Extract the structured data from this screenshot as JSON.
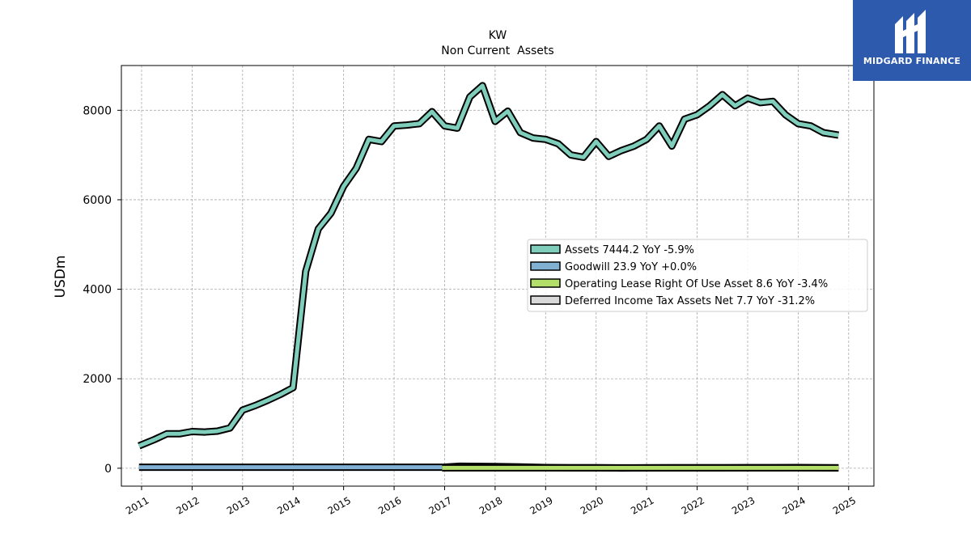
{
  "brand": {
    "name": "MIDGARD FINANCE",
    "color": "#2d5aad"
  },
  "chart_data": {
    "type": "area",
    "title": "KW",
    "subtitle": "Non Current  Assets",
    "ylabel": "USDm",
    "xlabel": "",
    "xlim": [
      2010.6,
      2025.5
    ],
    "ylim": [
      -400,
      9000
    ],
    "yticks": [
      0,
      2000,
      4000,
      6000,
      8000
    ],
    "xticks": [
      "2011",
      "2012",
      "2013",
      "2014",
      "2015",
      "2016",
      "2017",
      "2018",
      "2019",
      "2020",
      "2021",
      "2022",
      "2023",
      "2024",
      "2025"
    ],
    "grid": true,
    "legend_position": "center-right",
    "series": [
      {
        "name": "Assets  7444.2 YoY -5.9%",
        "color": "#7fcdbb",
        "x": [
          2010.95,
          2011.25,
          2011.5,
          2011.75,
          2012.0,
          2012.25,
          2012.5,
          2012.75,
          2013.0,
          2013.25,
          2013.5,
          2013.75,
          2014.0,
          2014.25,
          2014.5,
          2014.75,
          2015.0,
          2015.25,
          2015.5,
          2015.75,
          2016.0,
          2016.25,
          2016.5,
          2016.75,
          2017.0,
          2017.25,
          2017.5,
          2017.75,
          2018.0,
          2018.25,
          2018.5,
          2018.75,
          2019.0,
          2019.25,
          2019.5,
          2019.75,
          2020.0,
          2020.25,
          2020.5,
          2020.75,
          2021.0,
          2021.25,
          2021.5,
          2021.75,
          2022.0,
          2022.25,
          2022.5,
          2022.75,
          2023.0,
          2023.25,
          2023.5,
          2023.75,
          2024.0,
          2024.25,
          2024.5,
          2024.8
        ],
        "values": [
          500,
          640,
          770,
          770,
          820,
          810,
          830,
          900,
          1300,
          1400,
          1520,
          1650,
          1800,
          4400,
          5350,
          5700,
          6300,
          6700,
          7350,
          7300,
          7650,
          7670,
          7700,
          7970,
          7650,
          7600,
          8300,
          8550,
          7750,
          7980,
          7500,
          7380,
          7350,
          7250,
          7000,
          6950,
          7300,
          6970,
          7100,
          7200,
          7350,
          7650,
          7200,
          7800,
          7900,
          8100,
          8350,
          8100,
          8270,
          8170,
          8200,
          7900,
          7700,
          7650,
          7500,
          7444.2
        ]
      },
      {
        "name": "Goodwill  23.9 YoY +0.0%",
        "color": "#80b1d3",
        "x": [
          2010.95,
          2016.95
        ],
        "values": [
          23.9,
          23.9
        ]
      },
      {
        "name": "Operating Lease Right Of Use Asset  8.6 YoY -3.4%",
        "color": "#b3de69",
        "x": [
          2016.95,
          2024.8
        ],
        "values": [
          8.6,
          8.6
        ]
      },
      {
        "name": "Deferred Income Tax Assets Net  7.7 YoY -31.2%",
        "color": "#d9d9d9",
        "x": [
          2016.95,
          2017.3,
          2018.0,
          2018.5,
          2019.0,
          2019.5,
          2020.0,
          2020.5,
          2021.0,
          2021.5,
          2022.0,
          2022.5,
          2023.0,
          2023.5,
          2024.0,
          2024.5,
          2024.8
        ],
        "values": [
          20,
          45,
          40,
          30,
          15,
          10,
          10,
          5,
          8,
          10,
          12,
          12,
          14,
          14,
          15,
          12,
          7.7
        ]
      }
    ]
  }
}
